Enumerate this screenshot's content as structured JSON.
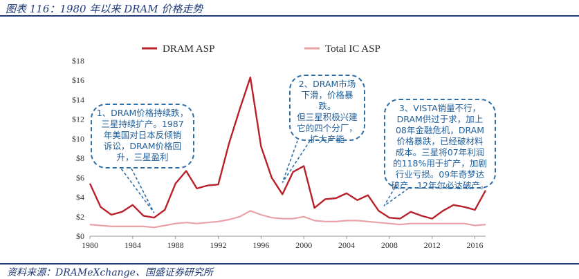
{
  "caption": "图表 116：1980 年以来 DRAM 价格走势",
  "source": "资料来源：DRAMeXchange、国盛证券研究所",
  "chart_data": {
    "type": "line",
    "title": "",
    "x": [
      1980,
      1981,
      1982,
      1983,
      1984,
      1985,
      1986,
      1987,
      1988,
      1989,
      1990,
      1991,
      1992,
      1993,
      1994,
      1995,
      1996,
      1997,
      1998,
      1999,
      2000,
      2001,
      2002,
      2003,
      2004,
      2005,
      2006,
      2007,
      2008,
      2009,
      2010,
      2011,
      2012,
      2013,
      2014,
      2015,
      2016,
      2017
    ],
    "series": [
      {
        "name": "DRAM ASP",
        "color": "#b8202a",
        "values": [
          5.4,
          3.0,
          2.2,
          2.5,
          3.2,
          2.1,
          1.9,
          2.7,
          5.4,
          6.7,
          4.9,
          5.2,
          5.3,
          9.5,
          13.0,
          16.3,
          9.2,
          6.0,
          4.3,
          6.6,
          7.2,
          2.9,
          3.8,
          3.9,
          4.4,
          3.7,
          4.2,
          2.6,
          1.9,
          1.8,
          2.5,
          2.1,
          1.8,
          2.6,
          3.2,
          3.0,
          2.7,
          4.7
        ]
      },
      {
        "name": "Total IC ASP",
        "color": "#e8a2a6",
        "values": [
          1.2,
          1.1,
          1.0,
          1.0,
          1.0,
          1.0,
          0.9,
          1.1,
          1.3,
          1.4,
          1.3,
          1.4,
          1.5,
          1.7,
          2.0,
          2.6,
          2.2,
          1.9,
          1.8,
          1.8,
          2.0,
          1.6,
          1.5,
          1.5,
          1.6,
          1.6,
          1.5,
          1.4,
          1.3,
          1.2,
          1.3,
          1.3,
          1.3,
          1.3,
          1.3,
          1.3,
          1.1,
          1.2
        ]
      }
    ],
    "y_ticks": [
      "$0",
      "$2",
      "$4",
      "$6",
      "$8",
      "$10",
      "$12",
      "$14",
      "$16",
      "$18"
    ],
    "x_ticks": [
      "1980",
      "1984",
      "1988",
      "1992",
      "1996",
      "2000",
      "2004",
      "2008",
      "2012",
      "2016"
    ],
    "ylim": [
      0,
      18
    ],
    "xlim": [
      1980,
      2017
    ],
    "legend_position": "top",
    "grid": false
  },
  "callouts": [
    {
      "text": "1、DRAM价格持续跌，\n三星持续扩产。1987\n年美国对日本反倾销\n诉讼，DRAM价格回\n升，三星盈利",
      "pointer_year": 1986,
      "pointer_value": 2.4
    },
    {
      "text": "2、DRAM市场\n下滑，价格暴跌。\n但三星积极兴建\n它的四个分厂，\n扩大产能",
      "pointer_year": 1998,
      "pointer_value": 5.5
    },
    {
      "text": "3、VISTA销量不行，\nDRAM供过于求，加上\n08年金融危机，DRAM\n价格暴跌，已经破材料\n成本。三星将07年利润\n的118%用于扩产，加剧\n行业亏损。09年奇梦达\n破产、12年尔必达破产。",
      "pointer_year": 2007.5,
      "pointer_value": 3.1
    }
  ]
}
